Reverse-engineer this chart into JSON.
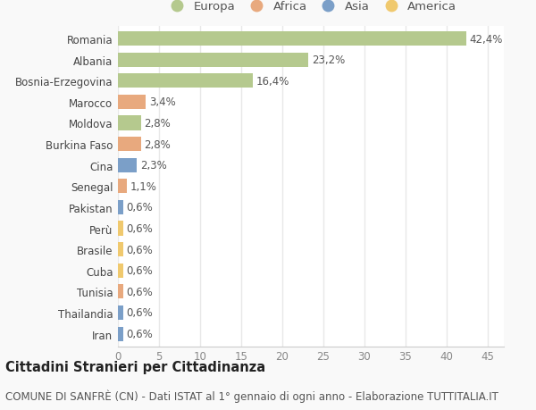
{
  "countries": [
    "Romania",
    "Albania",
    "Bosnia-Erzegovina",
    "Marocco",
    "Moldova",
    "Burkina Faso",
    "Cina",
    "Senegal",
    "Pakistan",
    "Perù",
    "Brasile",
    "Cuba",
    "Tunisia",
    "Thailandia",
    "Iran"
  ],
  "values": [
    42.4,
    23.2,
    16.4,
    3.4,
    2.8,
    2.8,
    2.3,
    1.1,
    0.6,
    0.6,
    0.6,
    0.6,
    0.6,
    0.6,
    0.6
  ],
  "labels": [
    "42,4%",
    "23,2%",
    "16,4%",
    "3,4%",
    "2,8%",
    "2,8%",
    "2,3%",
    "1,1%",
    "0,6%",
    "0,6%",
    "0,6%",
    "0,6%",
    "0,6%",
    "0,6%",
    "0,6%"
  ],
  "continents": [
    "Europa",
    "Europa",
    "Europa",
    "Africa",
    "Europa",
    "Africa",
    "Asia",
    "Africa",
    "Asia",
    "America",
    "America",
    "America",
    "Africa",
    "Asia",
    "Asia"
  ],
  "continent_colors": {
    "Europa": "#b5c98e",
    "Africa": "#e8a97e",
    "Asia": "#7b9fc8",
    "America": "#f0c96e"
  },
  "legend_items": [
    "Europa",
    "Africa",
    "Asia",
    "America"
  ],
  "xlim": [
    0,
    47
  ],
  "xticks": [
    0,
    5,
    10,
    15,
    20,
    25,
    30,
    35,
    40,
    45
  ],
  "title_bold": "Cittadini Stranieri per Cittadinanza",
  "subtitle": "COMUNE DI SANFRÈ (CN) - Dati ISTAT al 1° gennaio di ogni anno - Elaborazione TUTTITALIA.IT",
  "background_color": "#f9f9f9",
  "plot_bg_color": "#ffffff",
  "grid_color": "#e8e8e8",
  "bar_height": 0.68,
  "title_fontsize": 10.5,
  "subtitle_fontsize": 8.5,
  "label_fontsize": 8.5,
  "tick_fontsize": 8.5,
  "legend_fontsize": 9.5
}
